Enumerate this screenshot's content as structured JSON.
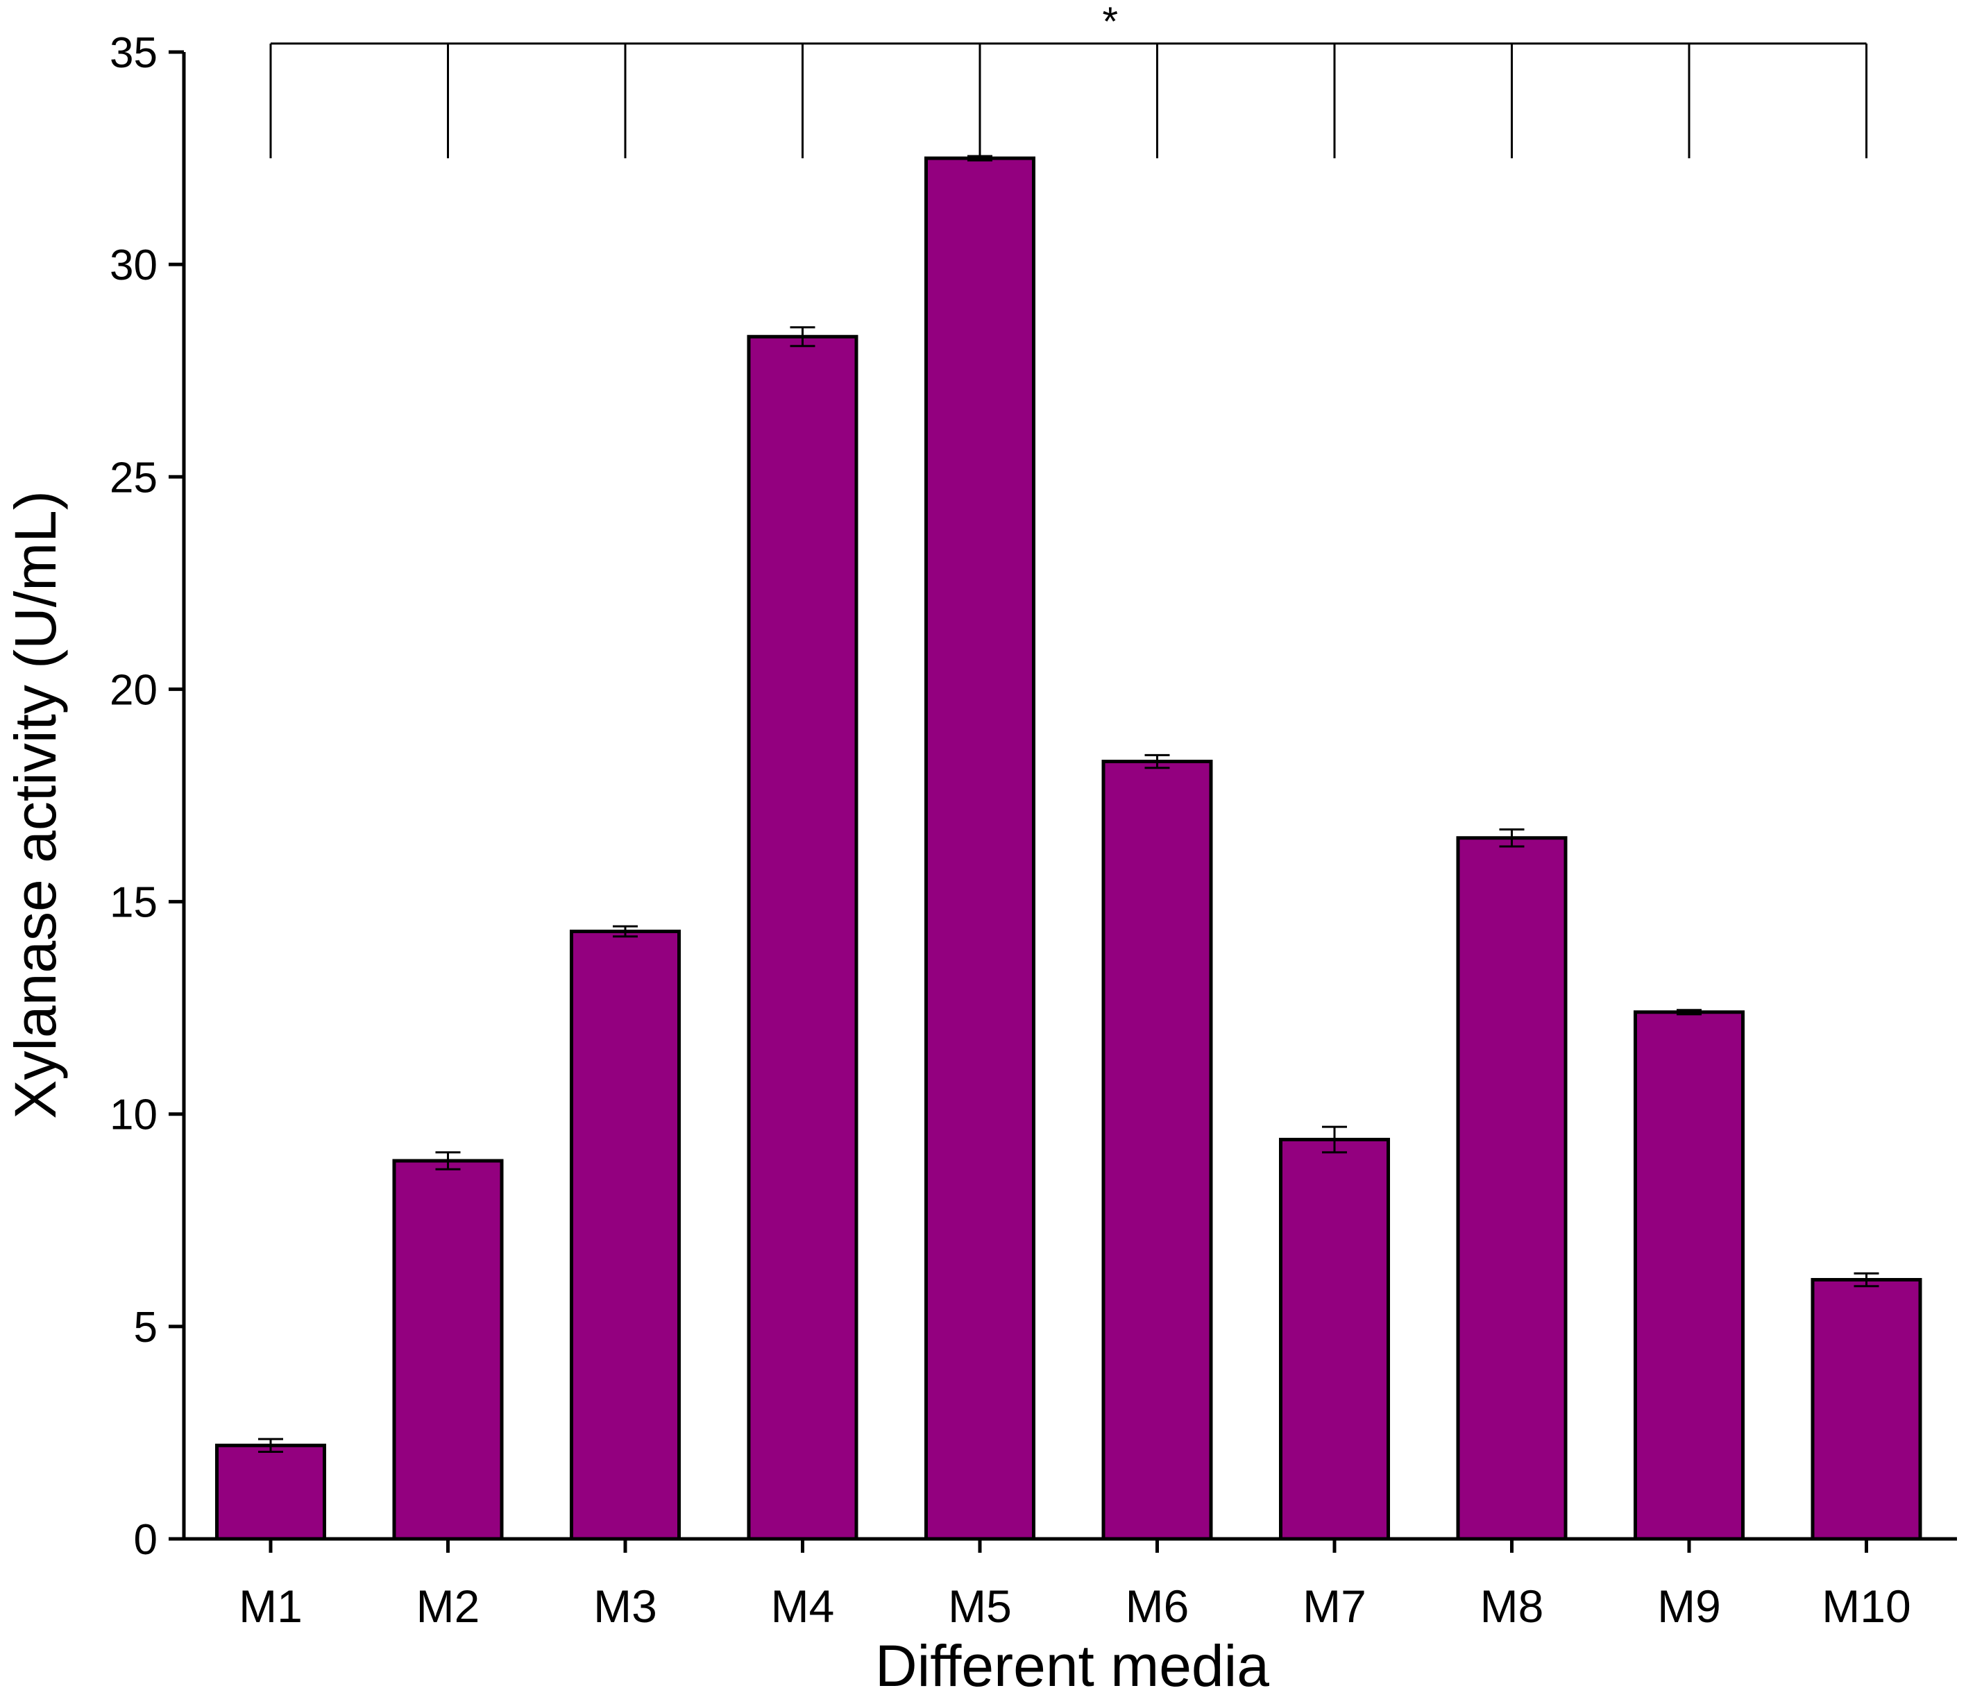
{
  "chart_data": {
    "type": "bar",
    "xlabel": "Different media",
    "ylabel": "Xylanase activity (U/mL)",
    "ylim": [
      0,
      35
    ],
    "yticks": [
      "0",
      "5",
      "10",
      "15",
      "20",
      "25",
      "30",
      "35"
    ],
    "categories": [
      "M1",
      "M2",
      "M3",
      "M4",
      "M5",
      "M6",
      "M7",
      "M8",
      "M9",
      "M10"
    ],
    "values": [
      2.2,
      8.9,
      14.3,
      28.3,
      32.5,
      18.3,
      9.4,
      16.5,
      12.4,
      6.1
    ],
    "errors": [
      0.15,
      0.2,
      0.12,
      0.22,
      0.05,
      0.15,
      0.3,
      0.2,
      0.05,
      0.15
    ],
    "bar_color": "#93007F",
    "grid": false,
    "significance": {
      "label": "*",
      "top_value": 35.2,
      "bottom_value": 32.5
    }
  }
}
